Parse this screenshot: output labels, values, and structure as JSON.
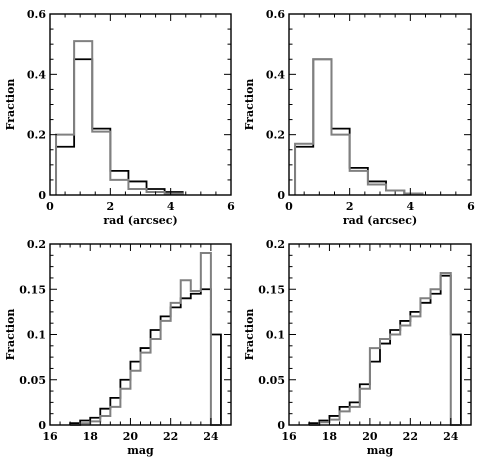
{
  "colors": {
    "series_a": "#000000",
    "series_b": "#808080"
  },
  "chart_data": [
    {
      "type": "histogram-step",
      "xlabel": "rad (arcsec)",
      "ylabel": "Fraction",
      "xlim": [
        0,
        6
      ],
      "ylim": [
        0,
        0.6
      ],
      "xticks": [
        0,
        2,
        4,
        6
      ],
      "xtick_labels": [
        "0",
        "2",
        "4",
        "6"
      ],
      "yticks": [
        0,
        0.2,
        0.4,
        0.6
      ],
      "ytick_labels": [
        "0",
        "0.2",
        "0.4",
        "0.6"
      ],
      "bin_edges": [
        0.2,
        0.8,
        1.4,
        2.0,
        2.6,
        3.2,
        3.8,
        4.4
      ],
      "series": [
        {
          "color": "#000000",
          "values": [
            0.16,
            0.45,
            0.22,
            0.08,
            0.045,
            0.02,
            0.01
          ]
        },
        {
          "color": "#808080",
          "values": [
            0.2,
            0.51,
            0.21,
            0.05,
            0.02,
            0.01,
            0.005
          ]
        }
      ]
    },
    {
      "type": "histogram-step",
      "xlabel": "rad (arcsec)",
      "ylabel": "Fraction",
      "xlim": [
        0,
        6
      ],
      "ylim": [
        0,
        0.6
      ],
      "xticks": [
        0,
        2,
        4,
        6
      ],
      "xtick_labels": [
        "0",
        "2",
        "4",
        "6"
      ],
      "yticks": [
        0,
        0.2,
        0.4,
        0.6
      ],
      "ytick_labels": [
        "0",
        "0.2",
        "0.4",
        "0.6"
      ],
      "bin_edges": [
        0.2,
        0.8,
        1.4,
        2.0,
        2.6,
        3.2,
        3.8,
        4.4
      ],
      "series": [
        {
          "color": "#000000",
          "values": [
            0.16,
            0.45,
            0.22,
            0.09,
            0.045,
            0.015,
            0.005
          ]
        },
        {
          "color": "#808080",
          "values": [
            0.17,
            0.45,
            0.2,
            0.08,
            0.035,
            0.015,
            0.005
          ]
        }
      ]
    },
    {
      "type": "histogram-step",
      "xlabel": "mag",
      "ylabel": "Fraction",
      "xlim": [
        16,
        25
      ],
      "ylim": [
        0,
        0.2
      ],
      "xticks": [
        16,
        18,
        20,
        22,
        24
      ],
      "xtick_labels": [
        "16",
        "18",
        "20",
        "22",
        "24"
      ],
      "yticks": [
        0,
        0.05,
        0.1,
        0.15,
        0.2
      ],
      "ytick_labels": [
        "0",
        "0.05",
        "0.1",
        "0.15",
        "0.2"
      ],
      "bin_edges": [
        17.0,
        17.5,
        18.0,
        18.5,
        19.0,
        19.5,
        20.0,
        20.5,
        21.0,
        21.5,
        22.0,
        22.5,
        23.0,
        23.5,
        24.0,
        24.5
      ],
      "series": [
        {
          "color": "#000000",
          "values": [
            0.002,
            0.005,
            0.008,
            0.018,
            0.03,
            0.05,
            0.07,
            0.085,
            0.105,
            0.12,
            0.13,
            0.14,
            0.145,
            0.15,
            0.1
          ]
        },
        {
          "color": "#808080",
          "values": [
            0.0,
            0.002,
            0.004,
            0.01,
            0.02,
            0.04,
            0.06,
            0.08,
            0.095,
            0.115,
            0.135,
            0.16,
            0.148,
            0.19,
            0.0
          ]
        }
      ]
    },
    {
      "type": "histogram-step",
      "xlabel": "mag",
      "ylabel": "Fraction",
      "xlim": [
        16,
        25
      ],
      "ylim": [
        0,
        0.2
      ],
      "xticks": [
        16,
        18,
        20,
        22,
        24
      ],
      "xtick_labels": [
        "16",
        "18",
        "20",
        "22",
        "24"
      ],
      "yticks": [
        0,
        0.05,
        0.1,
        0.15,
        0.2
      ],
      "ytick_labels": [
        "0",
        "0.05",
        "0.1",
        "0.15",
        "0.2"
      ],
      "bin_edges": [
        17.0,
        17.5,
        18.0,
        18.5,
        19.0,
        19.5,
        20.0,
        20.5,
        21.0,
        21.5,
        22.0,
        22.5,
        23.0,
        23.5,
        24.0,
        24.5
      ],
      "series": [
        {
          "color": "#000000",
          "values": [
            0.002,
            0.005,
            0.01,
            0.02,
            0.025,
            0.045,
            0.07,
            0.09,
            0.105,
            0.115,
            0.125,
            0.135,
            0.145,
            0.165,
            0.1
          ]
        },
        {
          "color": "#808080",
          "values": [
            0.0,
            0.003,
            0.006,
            0.015,
            0.02,
            0.04,
            0.085,
            0.095,
            0.1,
            0.11,
            0.12,
            0.14,
            0.15,
            0.168,
            0.0
          ]
        }
      ]
    }
  ]
}
